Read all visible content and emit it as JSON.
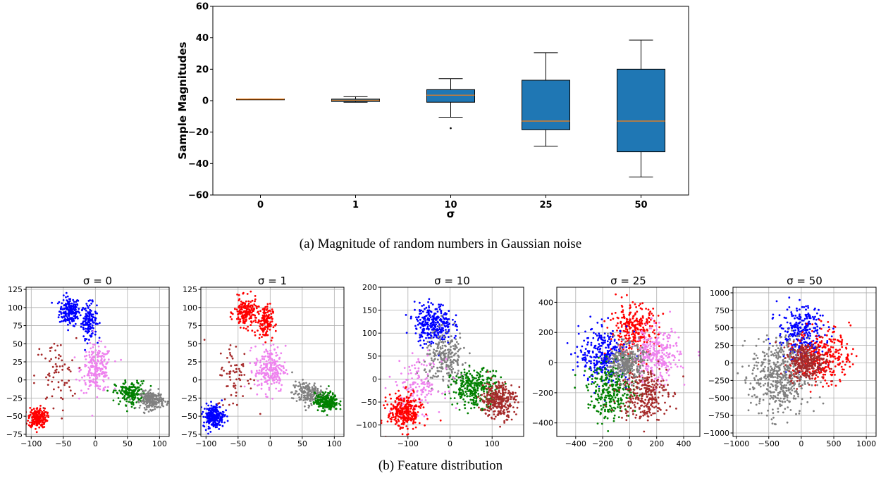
{
  "chart_data": [
    {
      "type": "box",
      "xlabel": "σ",
      "ylabel": "Sample Magnitudes",
      "ylim": [
        -60,
        60
      ],
      "yticks": [
        -60,
        -40,
        -20,
        0,
        20,
        40,
        60
      ],
      "categories": [
        "0",
        "1",
        "10",
        "25",
        "50"
      ],
      "box_color": "#1f77b4",
      "median_color": "#ff7f0e",
      "boxes": [
        {
          "label": "0",
          "whisker_low": 1,
          "q1": 1,
          "median": 1,
          "q3": 1,
          "whisker_high": 1,
          "outliers": []
        },
        {
          "label": "1",
          "whisker_low": -1,
          "q1": -0.5,
          "median": 0.3,
          "q3": 1,
          "whisker_high": 2.5,
          "outliers": []
        },
        {
          "label": "10",
          "whisker_low": -10.5,
          "q1": -1,
          "median": 3.5,
          "q3": 7,
          "whisker_high": 14,
          "outliers": [
            -17.5
          ]
        },
        {
          "label": "25",
          "whisker_low": -29,
          "q1": -18.5,
          "median": -13,
          "q3": 13,
          "whisker_high": 30.5,
          "outliers": []
        },
        {
          "label": "50",
          "whisker_low": -48.5,
          "q1": -32.5,
          "median": -13,
          "q3": 20,
          "whisker_high": 38.5,
          "outliers": []
        }
      ],
      "caption": "(a) Magnitude of random numbers in Gaussian noise"
    },
    {
      "type": "scatter",
      "caption": "(b) Feature distribution",
      "grid": true,
      "colors": {
        "blue": "#0000ff",
        "red": "#ff0000",
        "pink": "#ee82ee",
        "green": "#008000",
        "gray": "#808080",
        "brown": "#a52a2a"
      },
      "panels": [
        {
          "title": "σ = 0",
          "xlim": [
            -108,
            115
          ],
          "ylim": [
            -78,
            128
          ],
          "xticks": [
            -100,
            -50,
            0,
            50,
            100
          ],
          "yticks": [
            -75,
            -50,
            -25,
            0,
            25,
            50,
            75,
            100,
            125
          ],
          "clusters": [
            {
              "color": "blue",
              "cx": -40,
              "cy": 95,
              "sx": 8,
              "sy": 10,
              "n": 180
            },
            {
              "color": "blue",
              "cx": -10,
              "cy": 82,
              "sx": 6,
              "sy": 12,
              "n": 140
            },
            {
              "color": "pink",
              "cx": 2,
              "cy": 15,
              "sx": 12,
              "sy": 16,
              "n": 220
            },
            {
              "color": "brown",
              "cx": -62,
              "cy": 5,
              "sx": 16,
              "sy": 26,
              "n": 70
            },
            {
              "color": "red",
              "cx": -90,
              "cy": -52,
              "sx": 7,
              "sy": 7,
              "n": 220
            },
            {
              "color": "green",
              "cx": 55,
              "cy": -18,
              "sx": 12,
              "sy": 8,
              "n": 180
            },
            {
              "color": "gray",
              "cx": 88,
              "cy": -28,
              "sx": 9,
              "sy": 6,
              "n": 220
            }
          ]
        },
        {
          "title": "σ = 1",
          "xlim": [
            -108,
            115
          ],
          "ylim": [
            -78,
            128
          ],
          "xticks": [
            -100,
            -50,
            0,
            50,
            100
          ],
          "yticks": [
            -75,
            -50,
            -25,
            0,
            25,
            50,
            75,
            100,
            125
          ],
          "clusters": [
            {
              "color": "red",
              "cx": -38,
              "cy": 93,
              "sx": 9,
              "sy": 10,
              "n": 180
            },
            {
              "color": "red",
              "cx": -8,
              "cy": 80,
              "sx": 6,
              "sy": 12,
              "n": 140
            },
            {
              "color": "pink",
              "cx": 0,
              "cy": 15,
              "sx": 12,
              "sy": 16,
              "n": 220
            },
            {
              "color": "brown",
              "cx": -55,
              "cy": 5,
              "sx": 14,
              "sy": 24,
              "n": 70
            },
            {
              "color": "blue",
              "cx": -88,
              "cy": -50,
              "sx": 8,
              "sy": 8,
              "n": 220
            },
            {
              "color": "gray",
              "cx": 58,
              "cy": -18,
              "sx": 12,
              "sy": 8,
              "n": 180
            },
            {
              "color": "green",
              "cx": 88,
              "cy": -30,
              "sx": 9,
              "sy": 6,
              "n": 220
            }
          ]
        },
        {
          "title": "σ = 10",
          "xlim": [
            -165,
            175
          ],
          "ylim": [
            -125,
            200
          ],
          "xticks": [
            -100,
            0,
            100
          ],
          "yticks": [
            -100,
            -50,
            0,
            50,
            100,
            150,
            200
          ],
          "clusters": [
            {
              "color": "blue",
              "cx": -40,
              "cy": 120,
              "sx": 22,
              "sy": 22,
              "n": 300
            },
            {
              "color": "gray",
              "cx": -10,
              "cy": 45,
              "sx": 25,
              "sy": 28,
              "n": 250
            },
            {
              "color": "pink",
              "cx": -75,
              "cy": -15,
              "sx": 28,
              "sy": 28,
              "n": 150
            },
            {
              "color": "red",
              "cx": -108,
              "cy": -72,
              "sx": 20,
              "sy": 20,
              "n": 300
            },
            {
              "color": "green",
              "cx": 60,
              "cy": -20,
              "sx": 28,
              "sy": 20,
              "n": 300
            },
            {
              "color": "brown",
              "cx": 115,
              "cy": -45,
              "sx": 20,
              "sy": 20,
              "n": 300
            }
          ]
        },
        {
          "title": "σ = 25",
          "xlim": [
            -540,
            520
          ],
          "ylim": [
            -490,
            500
          ],
          "xticks": [
            -400,
            -200,
            0,
            200,
            400
          ],
          "yticks": [
            -400,
            -200,
            0,
            200,
            400
          ],
          "clusters": [
            {
              "color": "red",
              "cx": 30,
              "cy": 210,
              "sx": 90,
              "sy": 85,
              "n": 300
            },
            {
              "color": "blue",
              "cx": -190,
              "cy": 50,
              "sx": 90,
              "sy": 90,
              "n": 300
            },
            {
              "color": "pink",
              "cx": 190,
              "cy": 40,
              "sx": 90,
              "sy": 90,
              "n": 300
            },
            {
              "color": "green",
              "cx": -130,
              "cy": -190,
              "sx": 90,
              "sy": 90,
              "n": 300
            },
            {
              "color": "brown",
              "cx": 100,
              "cy": -200,
              "sx": 90,
              "sy": 90,
              "n": 300
            },
            {
              "color": "gray",
              "cx": -20,
              "cy": 0,
              "sx": 60,
              "sy": 60,
              "n": 300
            }
          ]
        },
        {
          "title": "σ = 50",
          "xlim": [
            -1050,
            1150
          ],
          "ylim": [
            -1050,
            1080
          ],
          "xticks": [
            -1000,
            -500,
            0,
            500,
            1000
          ],
          "yticks": [
            -1000,
            -750,
            -500,
            -250,
            0,
            250,
            500,
            750,
            1000
          ],
          "clusters": [
            {
              "color": "blue",
              "cx": 0,
              "cy": 420,
              "sx": 180,
              "sy": 200,
              "n": 300
            },
            {
              "color": "red",
              "cx": 330,
              "cy": 100,
              "sx": 210,
              "sy": 200,
              "n": 300
            },
            {
              "color": "gray",
              "cx": -330,
              "cy": -200,
              "sx": 220,
              "sy": 280,
              "n": 500
            },
            {
              "color": "brown",
              "cx": 80,
              "cy": 20,
              "sx": 140,
              "sy": 130,
              "n": 300
            }
          ]
        }
      ]
    }
  ]
}
